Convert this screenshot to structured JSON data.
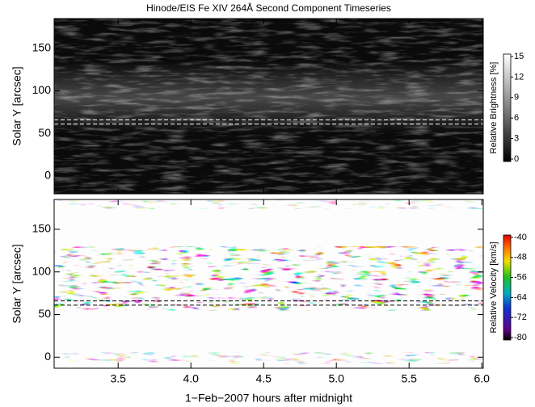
{
  "chart_data": [
    {
      "type": "heatmap",
      "title": "Hinode/EIS Fe XIV 264Å Second Component Timeseries",
      "ylabel": "Solar Y [arcsec]",
      "xlim": [
        3.06,
        6.01
      ],
      "ylim": [
        -21,
        185
      ],
      "yticks": [
        0,
        50,
        100,
        150
      ],
      "hlines": [
        61,
        66
      ],
      "hline_color": "#ffffff",
      "colorbar": {
        "label": "Relative Brightness [%]",
        "lim": [
          0,
          15
        ],
        "ticks": [
          0,
          3,
          6,
          9,
          12,
          15
        ]
      }
    },
    {
      "type": "heatmap",
      "xlabel": "1−Feb−2007 hours after midnight",
      "ylabel": "Solar Y [arcsec]",
      "xlim": [
        3.06,
        6.01
      ],
      "ylim": [
        -13,
        185
      ],
      "yticks": [
        0,
        50,
        100,
        150
      ],
      "xticks": [
        3.5,
        {
          "value": 4,
          "label": "4.0"
        },
        4.5,
        {
          "value": 5,
          "label": "5.0"
        },
        5.5,
        {
          "value": 6,
          "label": "6.0"
        }
      ],
      "hlines": [
        61,
        66
      ],
      "hline_color": "#000000",
      "colorbar": {
        "label": "Relative Velocity [km/s]",
        "lim": [
          -80,
          -40
        ],
        "ticks": [
          -40,
          -48,
          -56,
          -64,
          -72,
          -80
        ]
      }
    }
  ]
}
